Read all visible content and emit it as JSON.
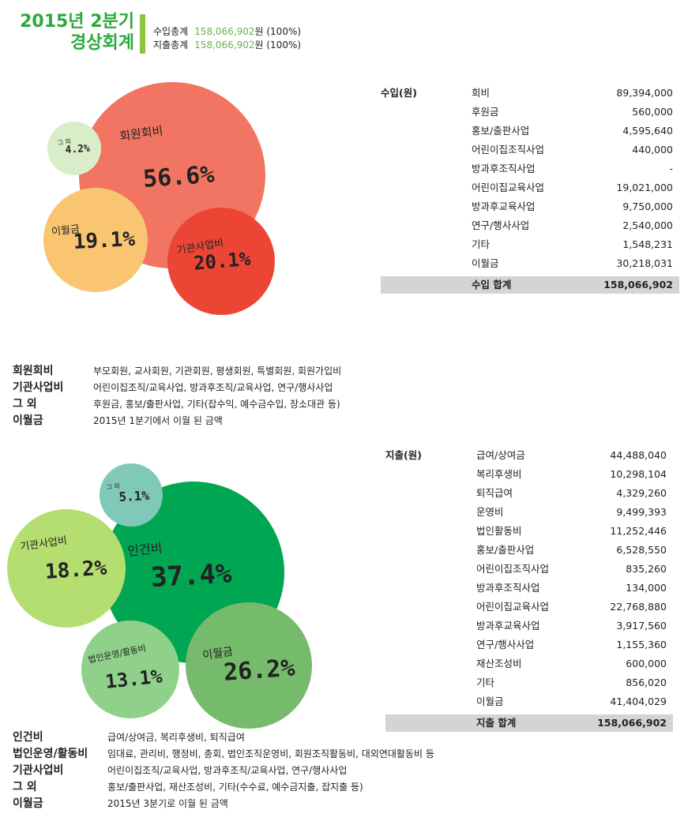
{
  "header": {
    "title_line1": "2015년 2분기",
    "title_line2": "경상회계",
    "income_total_label": "수입총계",
    "income_total_value": "158,066,902",
    "income_total_unit": "원 (100%)",
    "expense_total_label": "지출총계",
    "expense_total_value": "158,066,902",
    "expense_total_unit": "원 (100%)"
  },
  "colors": {
    "title": "#2aaa3a",
    "accent_bar": "#8cc63f",
    "number": "#6ab04c"
  },
  "income_bubbles": [
    {
      "label": "회원회비",
      "pct": "56.6%",
      "color": "#f27563"
    },
    {
      "label": "그 외",
      "pct": "4.2%",
      "color": "#d9edc9"
    },
    {
      "label": "이월금",
      "pct": "19.1%",
      "color": "#f9c570"
    },
    {
      "label": "기관사업비",
      "pct": "20.1%",
      "color": "#ec4535"
    }
  ],
  "income_table": {
    "heading": "수입(원)",
    "rows": [
      [
        "회비",
        "89,394,000"
      ],
      [
        "후원금",
        "560,000"
      ],
      [
        "홍보/출판사업",
        "4,595,640"
      ],
      [
        "어린이집조직사업",
        "440,000"
      ],
      [
        "방과후조직사업",
        "-"
      ],
      [
        "어린이집교육사업",
        "19,021,000"
      ],
      [
        "방과후교육사업",
        "9,750,000"
      ],
      [
        "연구/행사사업",
        "2,540,000"
      ],
      [
        "기타",
        "1,548,231"
      ],
      [
        "이월금",
        "30,218,031"
      ]
    ],
    "total_label": "수입 합계",
    "total_value": "158,066,902"
  },
  "income_desc": [
    [
      "회원회비",
      "부모회원, 교사회원, 기관회원, 평생회원, 특별회원, 회원가입비"
    ],
    [
      "기관사업비",
      "어린이집조직/교육사업, 방과후조직/교육사업, 연구/행사사업"
    ],
    [
      "그 외",
      "후원금, 홍보/출판사업, 기타(잡수익, 예수금수입, 장소대관 등)"
    ],
    [
      "이월금",
      "2015년 1분기에서 이월 된 금액"
    ]
  ],
  "expense_bubbles": [
    {
      "label": "인건비",
      "pct": "37.4%",
      "color": "#00a651"
    },
    {
      "label": "기관사업비",
      "pct": "18.2%",
      "color": "#b5de70"
    },
    {
      "label": "그 외",
      "pct": "5.1%",
      "color": "#80c9b9"
    },
    {
      "label": "법인운영/활동비",
      "pct": "13.1%",
      "color": "#8fd18b"
    },
    {
      "label": "이월금",
      "pct": "26.2%",
      "color": "#76ba6b"
    }
  ],
  "expense_table": {
    "heading": "지출(원)",
    "rows": [
      [
        "급여/상여금",
        "44,488,040"
      ],
      [
        "복리후생비",
        "10,298,104"
      ],
      [
        "퇴직급여",
        "4,329,260"
      ],
      [
        "운영비",
        "9,499,393"
      ],
      [
        "법인활동비",
        "11,252,446"
      ],
      [
        "홍보/출판사업",
        "6,528,550"
      ],
      [
        "어린이집조직사업",
        "835,260"
      ],
      [
        "방과후조직사업",
        "134,000"
      ],
      [
        "어린이집교육사업",
        "22,768,880"
      ],
      [
        "방과후교육사업",
        "3,917,560"
      ],
      [
        "연구/행사사업",
        "1,155,360"
      ],
      [
        "재산조성비",
        "600,000"
      ],
      [
        "기타",
        "856,020"
      ],
      [
        "이월금",
        "41,404,029"
      ]
    ],
    "total_label": "지출 합계",
    "total_value": "158,066,902"
  },
  "expense_desc": [
    [
      "인건비",
      "급여/상여금, 복리후생비, 퇴직급여"
    ],
    [
      "법인운영/활동비",
      "임대료, 관리비, 행정비, 총회, 법인조직운영비, 회원조직활동비, 대외연대활동비 등"
    ],
    [
      "기관사업비",
      "어린이집조직/교육사업, 방과후조직/교육사업, 연구/행사사업"
    ],
    [
      "그 외",
      "홍보/출판사업, 재산조성비, 기타(수수료, 예수금지출, 잡지출 등)"
    ],
    [
      "이월금",
      "2015년 3분기로 이월 된 금액"
    ]
  ]
}
